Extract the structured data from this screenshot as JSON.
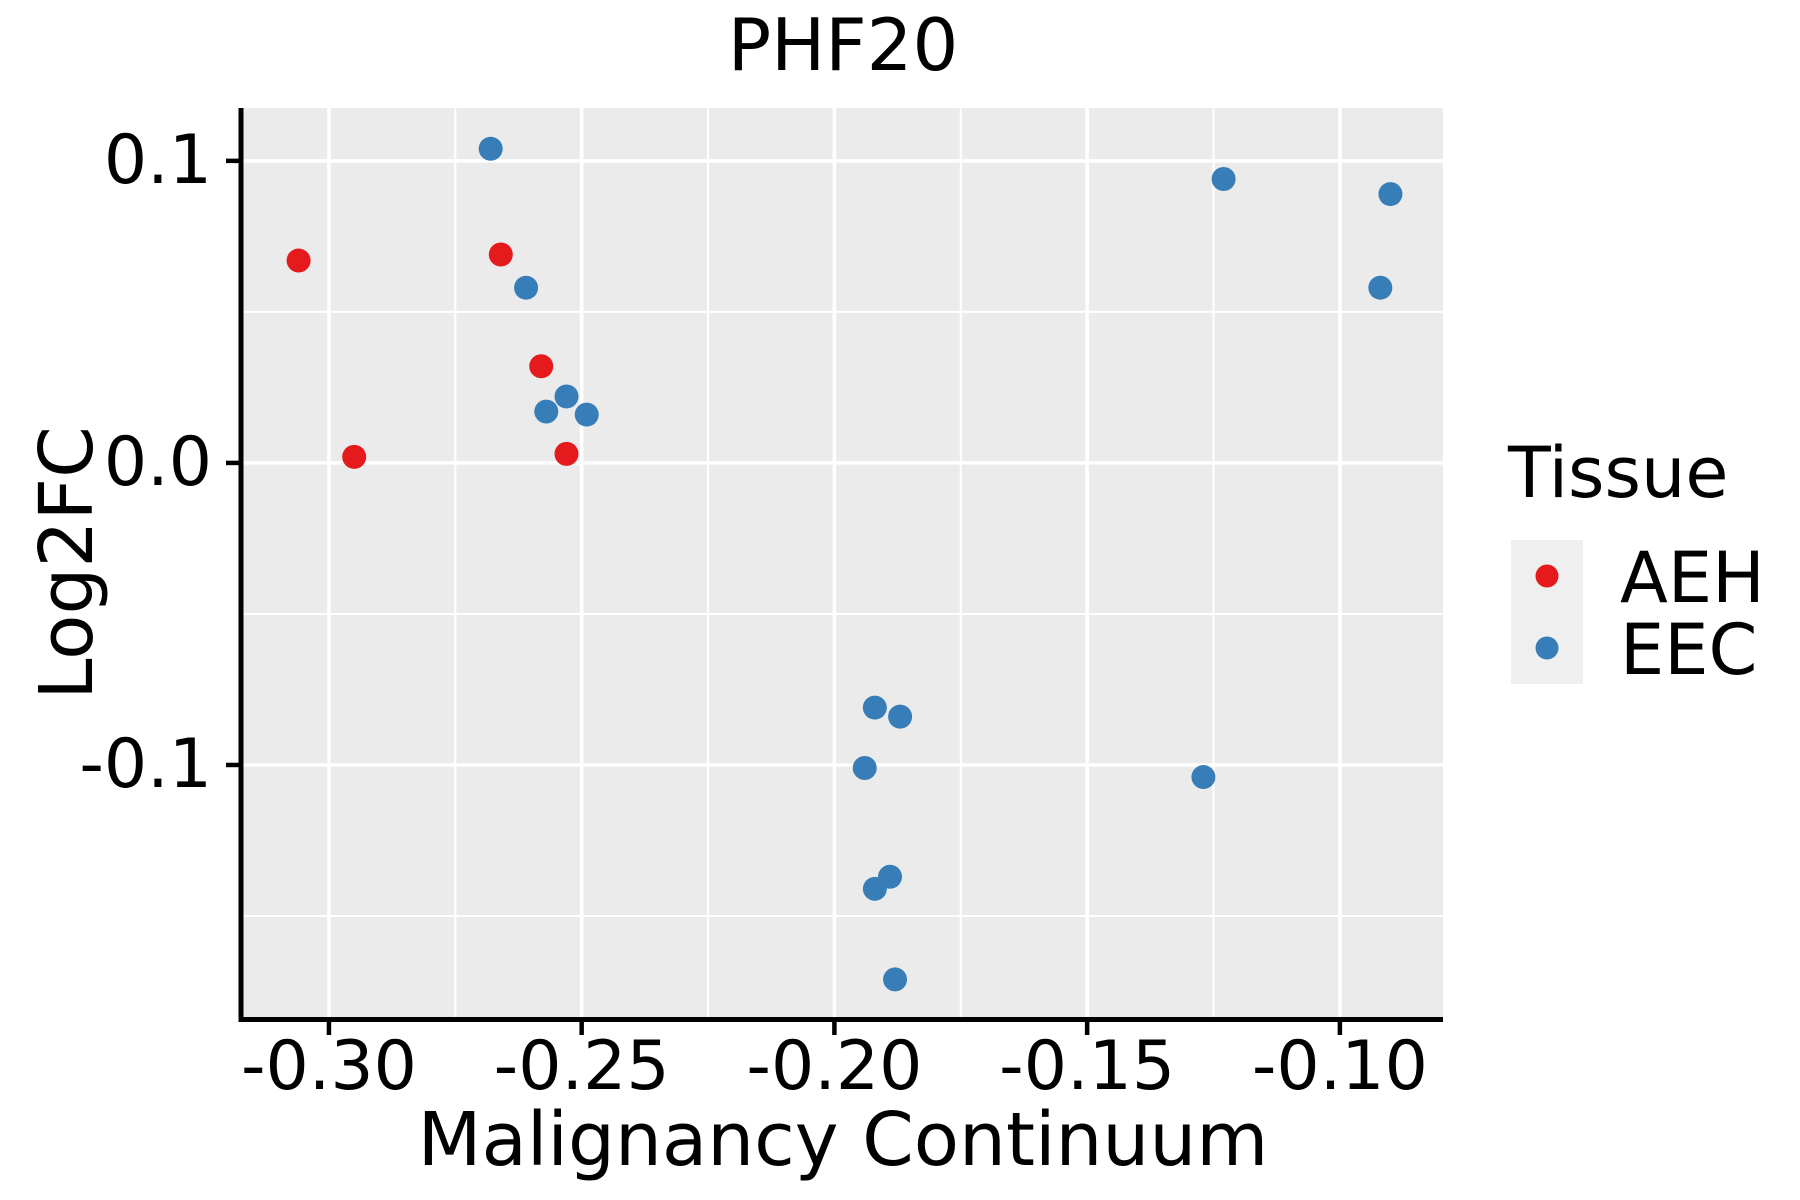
{
  "title": "PHF20",
  "axes": {
    "x_label": "Malignancy Continuum",
    "y_label": "Log2FC"
  },
  "legend": {
    "title": "Tissue",
    "items": [
      {
        "label": "AEH",
        "color": "#E41A1C"
      },
      {
        "label": "EEC",
        "color": "#377EB8"
      }
    ]
  },
  "colors": {
    "panel_background": "#EBEBEB",
    "gridline": "#FFFFFF",
    "axis_line": "#000000",
    "text": "#000000",
    "legend_key_background": "#EFEFEF",
    "aeh_red": "#E41A1C",
    "eec_blue": "#377EB8"
  },
  "chart_data": {
    "type": "scatter",
    "title": "PHF20",
    "xlabel": "Malignancy Continuum",
    "ylabel": "Log2FC",
    "xlim": [
      -0.317,
      -0.0796
    ],
    "ylim": [
      -0.1841,
      0.1175
    ],
    "grid": true,
    "legend_position": "right",
    "x_ticks": [
      -0.3,
      -0.25,
      -0.2,
      -0.15,
      -0.1
    ],
    "x_tick_labels": [
      "-0.30",
      "-0.25",
      "-0.20",
      "-0.15",
      "-0.10"
    ],
    "x_minor_ticks": [
      -0.275,
      -0.225,
      -0.175,
      -0.125
    ],
    "y_ticks": [
      0.1,
      0.0,
      -0.1
    ],
    "y_tick_labels": [
      "0.1",
      "0.0",
      "-0.1"
    ],
    "y_minor_ticks": [
      0.05,
      -0.05,
      -0.15
    ],
    "series": [
      {
        "name": "AEH",
        "color": "#E41A1C",
        "points": [
          [
            -0.306,
            0.067
          ],
          [
            -0.266,
            0.069
          ],
          [
            -0.258,
            0.032
          ],
          [
            -0.253,
            0.003
          ],
          [
            -0.295,
            0.002
          ]
        ]
      },
      {
        "name": "EEC",
        "color": "#377EB8",
        "points": [
          [
            -0.268,
            0.104
          ],
          [
            -0.261,
            0.058
          ],
          [
            -0.257,
            0.017
          ],
          [
            -0.253,
            0.022
          ],
          [
            -0.249,
            0.016
          ],
          [
            -0.123,
            0.094
          ],
          [
            -0.09,
            0.089
          ],
          [
            -0.092,
            0.058
          ],
          [
            -0.192,
            -0.081
          ],
          [
            -0.187,
            -0.084
          ],
          [
            -0.194,
            -0.101
          ],
          [
            -0.127,
            -0.104
          ],
          [
            -0.189,
            -0.137
          ],
          [
            -0.192,
            -0.141
          ],
          [
            -0.188,
            -0.171
          ]
        ]
      }
    ]
  }
}
